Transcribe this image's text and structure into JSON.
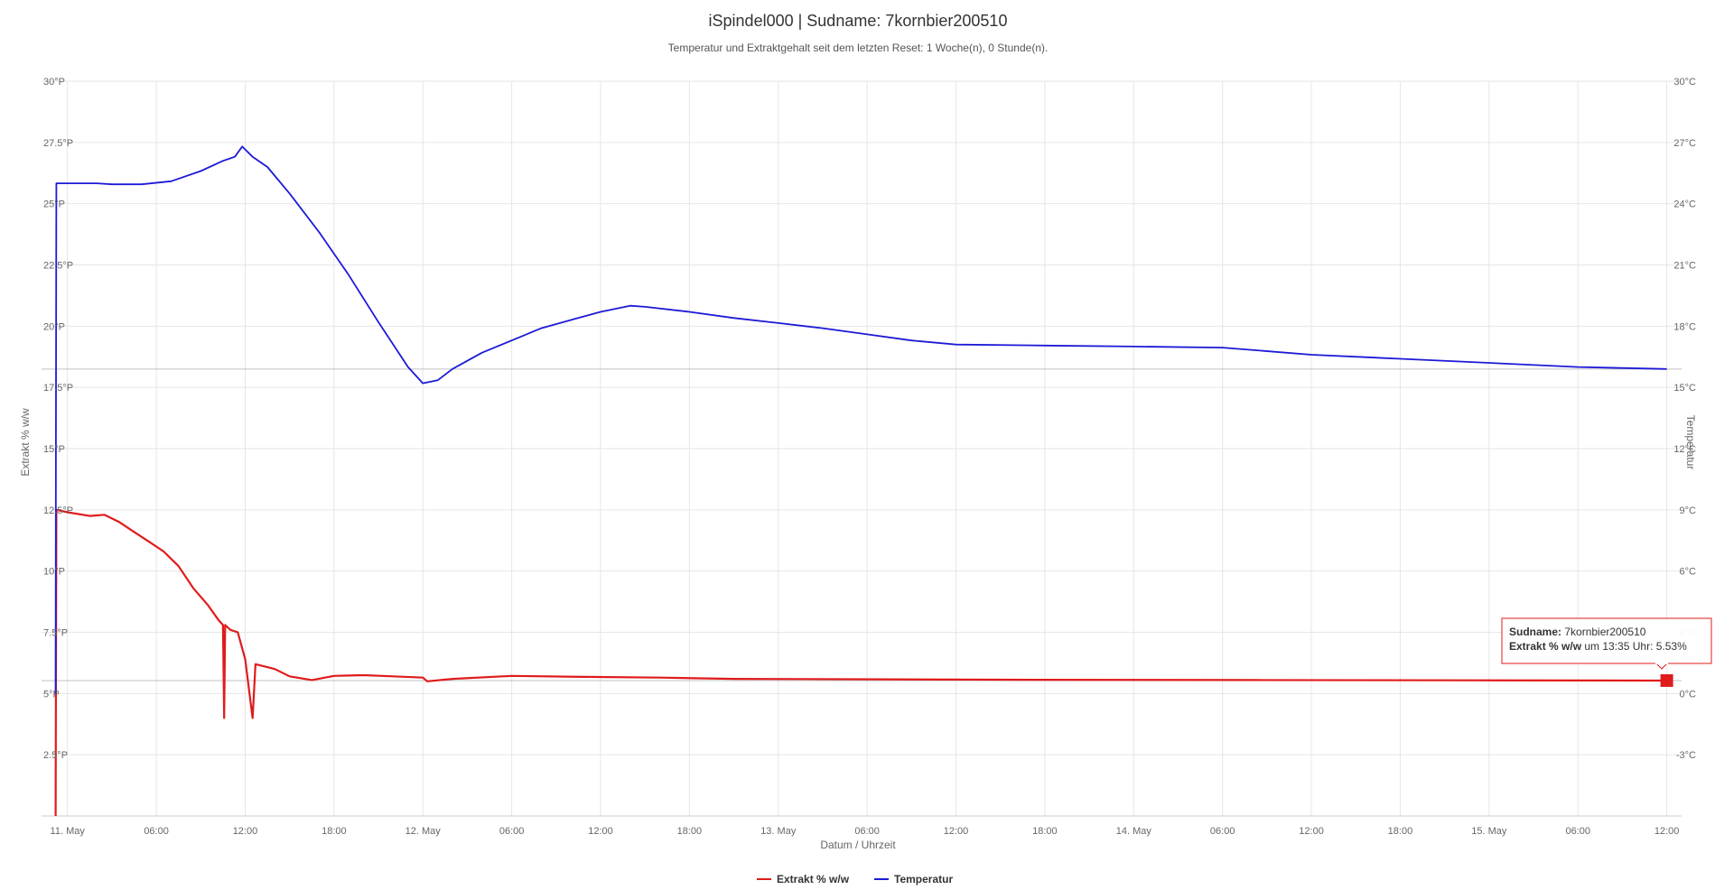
{
  "chart_data": {
    "type": "line",
    "title": "iSpindel000 | Sudname: 7kornbier200510",
    "subtitle": "Temperatur und Extraktgehalt seit dem letzten Reset: 1 Woche(n), 0 Stunde(n).",
    "xlabel": "Datum / Uhrzeit",
    "ylabel_left": "Extrakt % w/w",
    "ylabel_right": "Temperatur",
    "x_unit": "hours since 11. May 00:00",
    "xlim": [
      -1.75,
      109.0
    ],
    "x_ticks": [
      {
        "x": 0,
        "label": "11. May"
      },
      {
        "x": 6,
        "label": "06:00"
      },
      {
        "x": 12,
        "label": "12:00"
      },
      {
        "x": 18,
        "label": "18:00"
      },
      {
        "x": 24,
        "label": "12. May"
      },
      {
        "x": 30,
        "label": "06:00"
      },
      {
        "x": 36,
        "label": "12:00"
      },
      {
        "x": 42,
        "label": "18:00"
      },
      {
        "x": 48,
        "label": "13. May"
      },
      {
        "x": 54,
        "label": "06:00"
      },
      {
        "x": 60,
        "label": "12:00"
      },
      {
        "x": 66,
        "label": "18:00"
      },
      {
        "x": 72,
        "label": "14. May"
      },
      {
        "x": 78,
        "label": "06:00"
      },
      {
        "x": 84,
        "label": "12:00"
      },
      {
        "x": 90,
        "label": "18:00"
      },
      {
        "x": 96,
        "label": "15. May"
      },
      {
        "x": 102,
        "label": "06:00"
      },
      {
        "x": 108,
        "label": "12:00"
      }
    ],
    "ylim_left": [
      0,
      30
    ],
    "ylim_right": [
      -6,
      30
    ],
    "y_ticks_left": [
      {
        "v": 2.5,
        "label": "2.5°P"
      },
      {
        "v": 5,
        "label": "5°P"
      },
      {
        "v": 7.5,
        "label": "7.5°P"
      },
      {
        "v": 10,
        "label": "10°P"
      },
      {
        "v": 12.5,
        "label": "12.5°P"
      },
      {
        "v": 15,
        "label": "15°P"
      },
      {
        "v": 17.5,
        "label": "17.5°P"
      },
      {
        "v": 20,
        "label": "20°P"
      },
      {
        "v": 22.5,
        "label": "22.5°P"
      },
      {
        "v": 25,
        "label": "25°P"
      },
      {
        "v": 27.5,
        "label": "27.5°P"
      },
      {
        "v": 30,
        "label": "30°P"
      }
    ],
    "y_ticks_right": [
      {
        "v": -3,
        "label": "-3°C"
      },
      {
        "v": 0,
        "label": "0°C"
      },
      {
        "v": 3,
        "label": "3°C"
      },
      {
        "v": 6,
        "label": "6°C"
      },
      {
        "v": 9,
        "label": "9°C"
      },
      {
        "v": 12,
        "label": "12°C"
      },
      {
        "v": 15,
        "label": "15°C"
      },
      {
        "v": 18,
        "label": "18°C"
      },
      {
        "v": 21,
        "label": "21°C"
      },
      {
        "v": 24,
        "label": "24°C"
      },
      {
        "v": 27,
        "label": "27°C"
      },
      {
        "v": 30,
        "label": "30°C"
      }
    ],
    "grid": true,
    "legend_position": "bottom-center",
    "plot_lines": [
      {
        "axis": "right",
        "value": 15.9
      },
      {
        "axis": "left",
        "value": 5.53
      }
    ],
    "series": [
      {
        "name": "Extrakt % w/w",
        "axis": "left",
        "color": "#e01b1b",
        "points": [
          [
            -0.8,
            0.0
          ],
          [
            -0.78,
            5.0
          ],
          [
            -0.75,
            12.5
          ],
          [
            0.0,
            12.4
          ],
          [
            1.5,
            12.25
          ],
          [
            2.5,
            12.3
          ],
          [
            3.5,
            12.0
          ],
          [
            4.5,
            11.6
          ],
          [
            5.5,
            11.2
          ],
          [
            6.5,
            10.8
          ],
          [
            7.5,
            10.2
          ],
          [
            8.5,
            9.3
          ],
          [
            9.5,
            8.6
          ],
          [
            10.2,
            8.0
          ],
          [
            10.5,
            7.8
          ],
          [
            10.58,
            4.0
          ],
          [
            10.65,
            7.8
          ],
          [
            11.0,
            7.6
          ],
          [
            11.5,
            7.5
          ],
          [
            12.0,
            6.4
          ],
          [
            12.5,
            4.0
          ],
          [
            12.7,
            6.2
          ],
          [
            14.0,
            6.0
          ],
          [
            15.0,
            5.7
          ],
          [
            16.5,
            5.55
          ],
          [
            18.0,
            5.72
          ],
          [
            20.0,
            5.75
          ],
          [
            22.0,
            5.7
          ],
          [
            24.0,
            5.65
          ],
          [
            24.3,
            5.5
          ],
          [
            26.0,
            5.6
          ],
          [
            30.0,
            5.72
          ],
          [
            35.0,
            5.68
          ],
          [
            40.0,
            5.65
          ],
          [
            45.0,
            5.6
          ],
          [
            55.0,
            5.58
          ],
          [
            65.0,
            5.56
          ],
          [
            80.0,
            5.55
          ],
          [
            95.0,
            5.54
          ],
          [
            108.0,
            5.53
          ]
        ]
      },
      {
        "name": "Temperatur",
        "axis": "right",
        "color": "#1c1ad6",
        "points": [
          [
            -0.8,
            0.0
          ],
          [
            -0.78,
            12.0
          ],
          [
            -0.75,
            25.0
          ],
          [
            0.0,
            25.0
          ],
          [
            2.0,
            25.0
          ],
          [
            3.0,
            24.95
          ],
          [
            5.0,
            24.95
          ],
          [
            7.0,
            25.1
          ],
          [
            9.0,
            25.6
          ],
          [
            10.5,
            26.1
          ],
          [
            11.3,
            26.3
          ],
          [
            11.8,
            26.8
          ],
          [
            12.5,
            26.3
          ],
          [
            13.5,
            25.8
          ],
          [
            15.0,
            24.5
          ],
          [
            17.0,
            22.6
          ],
          [
            19.0,
            20.5
          ],
          [
            21.0,
            18.2
          ],
          [
            23.0,
            16.0
          ],
          [
            24.0,
            15.2
          ],
          [
            25.0,
            15.35
          ],
          [
            26.0,
            15.9
          ],
          [
            28.0,
            16.7
          ],
          [
            30.0,
            17.3
          ],
          [
            32.0,
            17.9
          ],
          [
            34.0,
            18.3
          ],
          [
            36.0,
            18.7
          ],
          [
            38.0,
            19.0
          ],
          [
            39.0,
            18.95
          ],
          [
            42.0,
            18.7
          ],
          [
            45.0,
            18.4
          ],
          [
            48.0,
            18.15
          ],
          [
            51.0,
            17.9
          ],
          [
            54.0,
            17.6
          ],
          [
            57.0,
            17.3
          ],
          [
            60.0,
            17.1
          ],
          [
            66.0,
            17.05
          ],
          [
            72.0,
            17.0
          ],
          [
            78.0,
            16.95
          ],
          [
            84.0,
            16.6
          ],
          [
            90.0,
            16.4
          ],
          [
            96.0,
            16.2
          ],
          [
            102.0,
            16.0
          ],
          [
            108.0,
            15.9
          ]
        ]
      }
    ]
  },
  "tooltip": {
    "label1": "Sudname:",
    "value1": " 7kornbier200510",
    "label2": "Extrakt % w/w",
    "value2": " um 13:35 Uhr: 5.53%",
    "x": 108.0,
    "y": 5.53
  },
  "colors": {
    "extrakt": "#e01b1b",
    "temperatur": "#1c1ad6",
    "grid": "#e6e6e6",
    "plot_line": "#c0c0c0"
  }
}
